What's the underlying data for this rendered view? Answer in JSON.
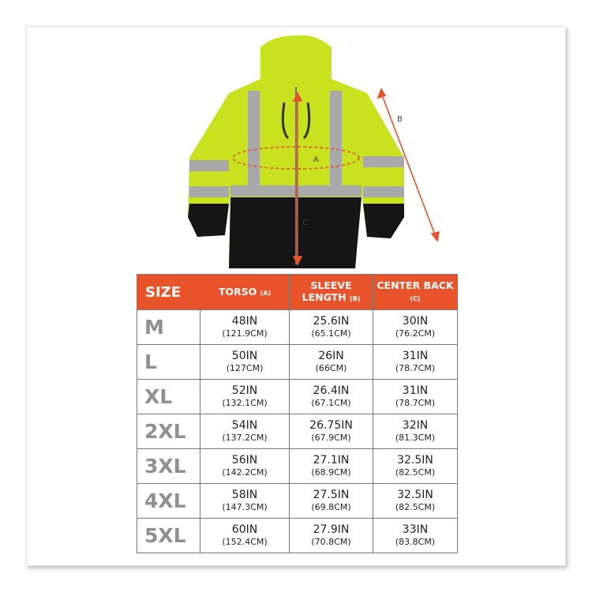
{
  "diagram": {
    "labels": {
      "a": "A",
      "b": "B",
      "c": "C"
    },
    "colors": {
      "arrow": "#e8532a",
      "jacket": "#c9e21f",
      "bottom": "#151515",
      "reflective": "#a7a9ab"
    }
  },
  "table": {
    "headers": [
      {
        "main": "SIZE",
        "sub": ""
      },
      {
        "main": "TORSO",
        "sub": "(A)"
      },
      {
        "main": "SLEEVE LENGTH",
        "sub": "(B)"
      },
      {
        "main": "CENTER BACK",
        "sub": "(C)"
      }
    ],
    "rows": [
      {
        "size": "M",
        "torso": [
          "48IN",
          "(121.9CM)"
        ],
        "sleeve": [
          "25.6IN",
          "(65.1CM)"
        ],
        "back": [
          "30IN",
          "(76.2CM)"
        ]
      },
      {
        "size": "L",
        "torso": [
          "50IN",
          "(127CM)"
        ],
        "sleeve": [
          "26IN",
          "(66CM)"
        ],
        "back": [
          "31IN",
          "(78.7CM)"
        ]
      },
      {
        "size": "XL",
        "torso": [
          "52IN",
          "(132.1CM)"
        ],
        "sleeve": [
          "26.4IN",
          "(67.1CM)"
        ],
        "back": [
          "31IN",
          "(78.7CM)"
        ]
      },
      {
        "size": "2XL",
        "torso": [
          "54IN",
          "(137.2CM)"
        ],
        "sleeve": [
          "26.75IN",
          "(67.9CM)"
        ],
        "back": [
          "32IN",
          "(81.3CM)"
        ]
      },
      {
        "size": "3XL",
        "torso": [
          "56IN",
          "(142.2CM)"
        ],
        "sleeve": [
          "27.1IN",
          "(68.9CM)"
        ],
        "back": [
          "32.5IN",
          "(82.5CM)"
        ]
      },
      {
        "size": "4XL",
        "torso": [
          "58IN",
          "(147.3CM)"
        ],
        "sleeve": [
          "27.5IN",
          "(69.8CM)"
        ],
        "back": [
          "32.5IN",
          "(82.5CM)"
        ]
      },
      {
        "size": "5XL",
        "torso": [
          "60IN",
          "(152.4CM)"
        ],
        "sleeve": [
          "27.9IN",
          "(70.8CM)"
        ],
        "back": [
          "33IN",
          "(83.8CM)"
        ]
      }
    ]
  }
}
